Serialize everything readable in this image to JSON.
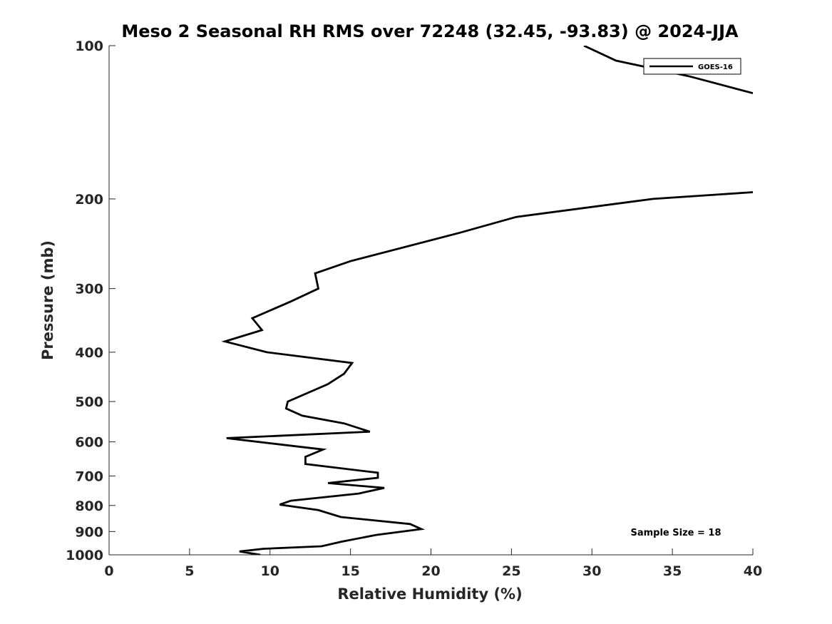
{
  "chart_data": {
    "type": "line",
    "title": "Meso 2 Seasonal RH RMS over 72248 (32.45, -93.83) @ 2024-JJA",
    "xlabel": "Relative Humidity (%)",
    "ylabel": "Pressure (mb)",
    "xlim": [
      0,
      40
    ],
    "ylim": [
      1000,
      100
    ],
    "y_scale": "log",
    "x_ticks": [
      0,
      5,
      10,
      15,
      20,
      25,
      30,
      35,
      40
    ],
    "y_ticks": [
      100,
      200,
      300,
      400,
      500,
      600,
      700,
      800,
      900,
      1000
    ],
    "grid": false,
    "legend_position": "top-right",
    "annotation": "Sample Size = 18",
    "series": [
      {
        "name": "GOES-16",
        "color": "#000000",
        "x": [
          29.5,
          31.5,
          36.1,
          40.0
        ],
        "y": [
          100,
          107,
          115,
          124
        ],
        "segment": "upper"
      },
      {
        "name": "GOES-16",
        "color": "#000000",
        "x": [
          40.0,
          33.8,
          25.3,
          21.8,
          15.0,
          12.8,
          13.0,
          11.3,
          8.9,
          9.5,
          7.2,
          9.8,
          15.1,
          14.6,
          13.6,
          11.1,
          11.0,
          12.0,
          14.6,
          16.2,
          7.3,
          13.3,
          12.2,
          12.2,
          16.7,
          16.7,
          13.6,
          17.1,
          15.5,
          11.3,
          10.6,
          13.0,
          14.4,
          18.7,
          19.4,
          16.6,
          14.4,
          13.2,
          9.6,
          8.1,
          9.4
        ],
        "y": [
          194,
          200,
          217,
          233,
          265,
          280,
          300,
          318,
          343,
          362,
          381,
          400,
          420,
          441,
          462,
          500,
          516,
          533,
          552,
          573,
          590,
          621,
          642,
          663,
          690,
          706,
          723,
          739,
          758,
          783,
          797,
          817,
          843,
          870,
          890,
          914,
          943,
          962,
          973,
          985,
          1000
        ],
        "segment": "lower"
      }
    ]
  }
}
